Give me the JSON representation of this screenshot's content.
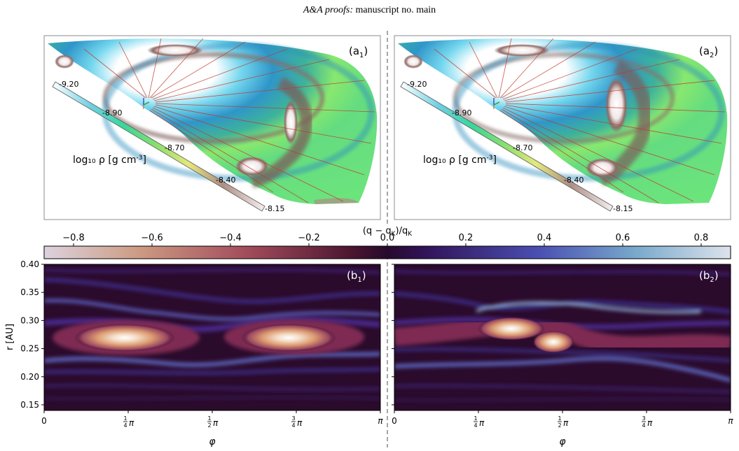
{
  "header": {
    "journal": "A&A proofs:",
    "manuscript": "manuscript no. main"
  },
  "panels_top": [
    {
      "label": "(a",
      "sub": "1",
      "close": ")",
      "colorbar_title_main": "log₁₀ ρ [g cm",
      "colorbar_title_exp": "-3",
      "colorbar_title_end": "]",
      "colorbar_ticks": [
        "-9.20",
        "-8.90",
        "-8.70",
        "-8.40",
        "-8.15"
      ]
    },
    {
      "label": "(a",
      "sub": "2",
      "close": ")",
      "colorbar_title_main": "log₁₀ ρ [g cm",
      "colorbar_title_exp": "-3",
      "colorbar_title_end": "]",
      "colorbar_ticks": [
        "-9.20",
        "-8.90",
        "-8.70",
        "-8.40",
        "-8.15"
      ]
    }
  ],
  "colorbar": {
    "title": "(q − q",
    "title_sub": "K",
    "title_end": ")/q",
    "title_sub2": "K",
    "range": [
      -0.875,
      0.875
    ],
    "ticks": [
      -0.8,
      -0.6,
      -0.4,
      -0.2,
      0.0,
      0.2,
      0.4,
      0.6,
      0.8
    ],
    "tick_labels": [
      "−0.8",
      "−0.6",
      "−0.4",
      "−0.2",
      "0.0",
      "0.2",
      "0.4",
      "0.6",
      "0.8"
    ]
  },
  "chart_data": [
    {
      "type": "heatmap",
      "panel_label": "(b",
      "panel_sub": "1",
      "panel_close": ")",
      "xlabel": "φ",
      "ylabel": "r [AU]",
      "xlim": [
        0,
        3.14159
      ],
      "ylim": [
        0.14,
        0.4
      ],
      "xticks": [
        0,
        0.7854,
        1.5708,
        2.3562,
        3.14159
      ],
      "xtick_labels": [
        {
          "main": "0",
          "frac": ""
        },
        {
          "main": "π",
          "frac": "1/4"
        },
        {
          "main": "π",
          "frac": "1/2"
        },
        {
          "main": "π",
          "frac": "3/4"
        },
        {
          "main": "π",
          "frac": ""
        }
      ],
      "yticks": [
        0.15,
        0.2,
        0.25,
        0.3,
        0.35,
        0.4
      ],
      "ytick_labels": [
        "0.15",
        "0.20",
        "0.25",
        "0.30",
        "0.35",
        "0.40"
      ]
    },
    {
      "type": "heatmap",
      "panel_label": "(b",
      "panel_sub": "2",
      "panel_close": ")",
      "xlabel": "φ",
      "ylabel": "",
      "xlim": [
        0,
        3.14159
      ],
      "ylim": [
        0.14,
        0.4
      ],
      "xticks": [
        0,
        0.7854,
        1.5708,
        2.3562,
        3.14159
      ],
      "xtick_labels": [
        {
          "main": "0",
          "frac": ""
        },
        {
          "main": "π",
          "frac": "1/4"
        },
        {
          "main": "π",
          "frac": "1/2"
        },
        {
          "main": "π",
          "frac": "3/4"
        },
        {
          "main": "π",
          "frac": ""
        }
      ],
      "yticks": [
        0.15,
        0.2,
        0.25,
        0.3,
        0.35,
        0.4
      ],
      "ytick_labels": []
    }
  ]
}
